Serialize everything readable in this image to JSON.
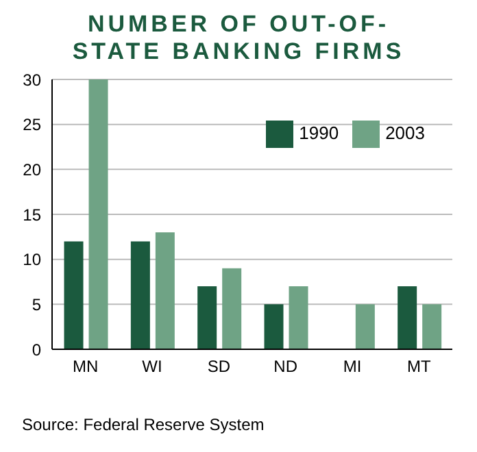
{
  "chart_data": {
    "type": "bar",
    "title": "NUMBER OF OUT-OF-STATE BANKING FIRMS",
    "categories": [
      "MN",
      "WI",
      "SD",
      "ND",
      "MI",
      "MT"
    ],
    "series": [
      {
        "name": "1990",
        "color": "#1b5a3e",
        "values": [
          12,
          12,
          7,
          5,
          0,
          7
        ]
      },
      {
        "name": "2003",
        "color": "#6fa385",
        "values": [
          30,
          13,
          9,
          7,
          5,
          5
        ]
      }
    ],
    "ylim": [
      0,
      30
    ],
    "yticks": [
      0,
      5,
      10,
      15,
      20,
      25,
      30
    ],
    "grid": "y",
    "legend": "top right",
    "annotations": [
      "Source: Federal Reserve System"
    ]
  }
}
